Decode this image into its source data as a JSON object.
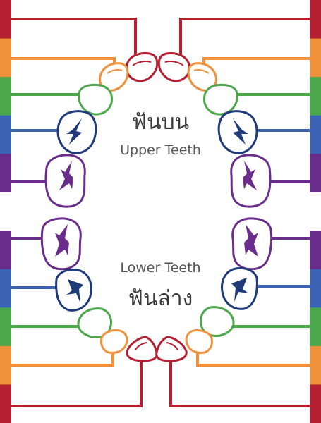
{
  "labels": {
    "upper_thai": "ฟันบน",
    "upper_english": "Upper Teeth",
    "lower_english": "Lower Teeth",
    "lower_thai": "ฟันล่าง"
  },
  "colors": {
    "central_incisor": "#b41f32",
    "lateral_incisor": "#f0903a",
    "canine": "#4aa84a",
    "first_premolar": "#1f3b7a",
    "second_premolar": "#6a2d8c",
    "leader_blue": "#3b63b5",
    "leader_purple": "#6a2d8c"
  },
  "side_bar_segments": [
    {
      "color": "#b41f32"
    },
    {
      "color": "#f0903a"
    },
    {
      "color": "#4aa84a"
    },
    {
      "color": "#3b63b5"
    },
    {
      "color": "#6a2d8c"
    },
    {
      "color": "#ffffff"
    },
    {
      "color": "#6a2d8c"
    },
    {
      "color": "#3b63b5"
    },
    {
      "color": "#4aa84a"
    },
    {
      "color": "#f0903a"
    },
    {
      "color": "#b41f32"
    }
  ]
}
